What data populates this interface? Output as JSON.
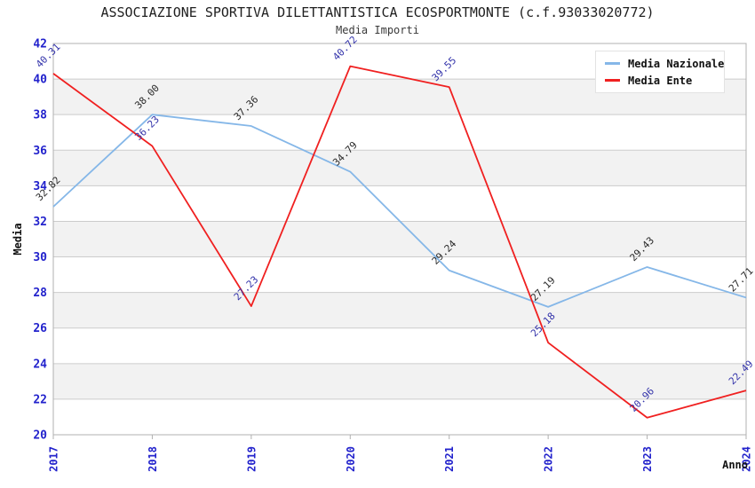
{
  "chart_data": {
    "type": "line",
    "title": "ASSOCIAZIONE SPORTIVA DILETTANTISTICA ECOSPORTMONTE (c.f.93033020772)",
    "subtitle": "Media Importi",
    "xlabel": "Anno",
    "ylabel": "Media",
    "categories": [
      "2017",
      "2018",
      "2019",
      "2020",
      "2021",
      "2022",
      "2023",
      "2024"
    ],
    "ylim": [
      20,
      42
    ],
    "ytick_step": 2,
    "grid": true,
    "band_fill": true,
    "legend_position": "top-right",
    "series": [
      {
        "name": "Media Nazionale",
        "color": "#85b7e8",
        "label_color": "#2a2a2a",
        "values": [
          32.82,
          38.0,
          37.36,
          34.79,
          29.24,
          27.19,
          29.43,
          27.71
        ]
      },
      {
        "name": "Media Ente",
        "color": "#f02020",
        "label_color": "#3333aa",
        "values": [
          40.31,
          36.23,
          27.23,
          40.72,
          39.55,
          25.18,
          20.96,
          22.49
        ]
      }
    ],
    "colors": {
      "tick_label": "#2222cc",
      "gridline": "#cccccc",
      "band": "#f2f2f2",
      "border": "#b0b0b0",
      "axis_title": "#111111"
    }
  }
}
